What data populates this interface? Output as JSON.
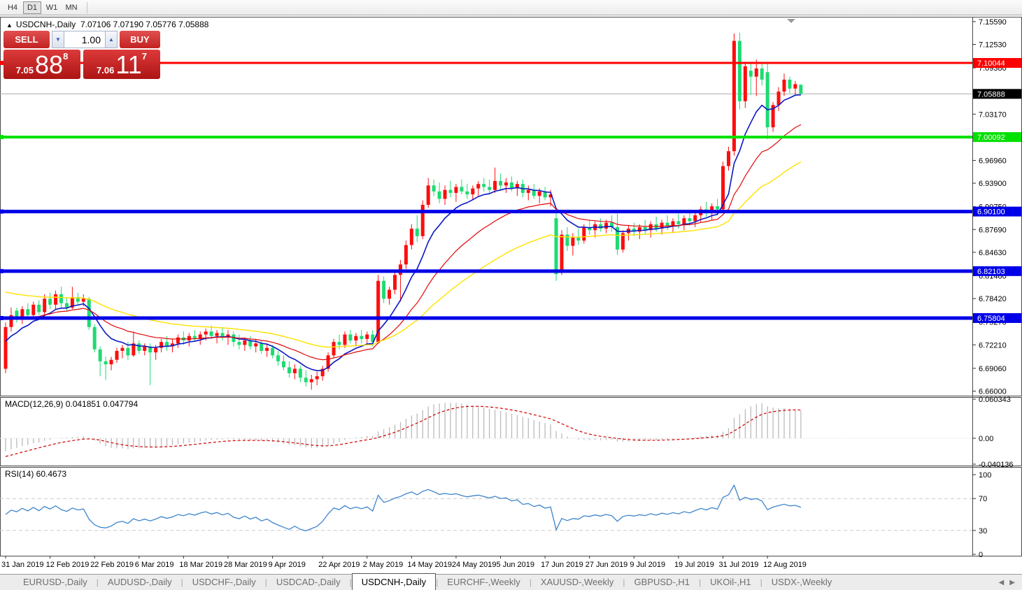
{
  "toolbar": {
    "timeframes": [
      "H4",
      "D1",
      "W1",
      "MN"
    ],
    "active": "D1"
  },
  "header": {
    "collapse_icon": "▲",
    "symbol": "USDCNH-,Daily",
    "ohlc_text": "7.07106 7.07190 7.05776 7.05888"
  },
  "trade_panel": {
    "sell_label": "SELL",
    "buy_label": "BUY",
    "volume": "1.00",
    "spin_down_icon": "▼",
    "spin_up_icon": "▲",
    "sell_price_prefix": "7.05",
    "sell_price_big": "88",
    "sell_price_sup": "8",
    "buy_price_prefix": "7.06",
    "buy_price_big": "11",
    "buy_price_sup": "7"
  },
  "price_axis": {
    "ticks": [
      7.1559,
      7.1253,
      7.0938,
      7.0622,
      7.0317,
      6.9696,
      6.939,
      6.9075,
      6.8769,
      6.8463,
      6.8148,
      6.7842,
      6.7527,
      6.7221,
      6.6906,
      6.66
    ]
  },
  "chart_data": {
    "type": "candlestick",
    "symbol": "USDCNH",
    "timeframe": "Daily",
    "up_color": "#fe0d0d",
    "down_color": "#1edb72",
    "price_range": [
      6.66,
      7.1559
    ],
    "bid": {
      "price": 7.05888,
      "label": "7.05888",
      "line_color": "#ababab",
      "label_bg": "#000000"
    },
    "hlines": [
      {
        "price": 7.10044,
        "label": "7.10044",
        "color": "#fe0000",
        "width": 3
      },
      {
        "price": 7.00092,
        "label": "7.00092",
        "color": "#00e100",
        "width": 4
      },
      {
        "price": 6.901,
        "label": "6.90100",
        "color": "#0000e8",
        "width": 5
      },
      {
        "price": 6.82103,
        "label": "6.82103",
        "color": "#0000e8",
        "width": 5
      },
      {
        "price": 6.75804,
        "label": "6.75804",
        "color": "#0000e8",
        "width": 5
      }
    ],
    "candles": [
      [
        6.69,
        6.752,
        6.684,
        6.746
      ],
      [
        6.746,
        6.772,
        6.74,
        6.762
      ],
      [
        6.768,
        6.772,
        6.752,
        6.757
      ],
      [
        6.757,
        6.774,
        6.75,
        6.77
      ],
      [
        6.77,
        6.778,
        6.758,
        6.762
      ],
      [
        6.762,
        6.78,
        6.757,
        6.776
      ],
      [
        6.776,
        6.782,
        6.762,
        6.766
      ],
      [
        6.766,
        6.79,
        6.76,
        6.784
      ],
      [
        6.784,
        6.792,
        6.77,
        6.776
      ],
      [
        6.776,
        6.795,
        6.77,
        6.79
      ],
      [
        6.79,
        6.8,
        6.772,
        6.778
      ],
      [
        6.778,
        6.786,
        6.768,
        6.772
      ],
      [
        6.772,
        6.8,
        6.77,
        6.786
      ],
      [
        6.786,
        6.792,
        6.776,
        6.78
      ],
      [
        6.78,
        6.79,
        6.774,
        6.784
      ],
      [
        6.784,
        6.786,
        6.742,
        6.746
      ],
      [
        6.746,
        6.75,
        6.712,
        6.716
      ],
      [
        6.716,
        6.72,
        6.68,
        6.7
      ],
      [
        6.7,
        6.706,
        6.675,
        6.696
      ],
      [
        6.696,
        6.706,
        6.688,
        6.702
      ],
      [
        6.702,
        6.718,
        6.698,
        6.714
      ],
      [
        6.714,
        6.722,
        6.704,
        6.718
      ],
      [
        6.718,
        6.726,
        6.702,
        6.708
      ],
      [
        6.708,
        6.74,
        6.706,
        6.724
      ],
      [
        6.724,
        6.728,
        6.71,
        6.714
      ],
      [
        6.714,
        6.724,
        6.708,
        6.72
      ],
      [
        6.72,
        6.724,
        6.668,
        6.712
      ],
      [
        6.712,
        6.722,
        6.702,
        6.718
      ],
      [
        6.718,
        6.73,
        6.712,
        6.726
      ],
      [
        6.726,
        6.734,
        6.714,
        6.72
      ],
      [
        6.72,
        6.73,
        6.712,
        6.724
      ],
      [
        6.724,
        6.736,
        6.718,
        6.732
      ],
      [
        6.732,
        6.74,
        6.722,
        6.728
      ],
      [
        6.728,
        6.738,
        6.72,
        6.734
      ],
      [
        6.734,
        6.742,
        6.726,
        6.73
      ],
      [
        6.73,
        6.74,
        6.722,
        6.736
      ],
      [
        6.736,
        6.744,
        6.728,
        6.74
      ],
      [
        6.74,
        6.748,
        6.73,
        6.734
      ],
      [
        6.734,
        6.742,
        6.724,
        6.738
      ],
      [
        6.738,
        6.746,
        6.728,
        6.732
      ],
      [
        6.732,
        6.742,
        6.722,
        6.736
      ],
      [
        6.736,
        6.74,
        6.72,
        6.726
      ],
      [
        6.726,
        6.736,
        6.716,
        6.722
      ],
      [
        6.722,
        6.732,
        6.714,
        6.728
      ],
      [
        6.728,
        6.734,
        6.716,
        6.72
      ],
      [
        6.72,
        6.73,
        6.712,
        6.724
      ],
      [
        6.724,
        6.728,
        6.71,
        6.714
      ],
      [
        6.714,
        6.724,
        6.706,
        6.718
      ],
      [
        6.718,
        6.722,
        6.704,
        6.708
      ],
      [
        6.708,
        6.714,
        6.694,
        6.7
      ],
      [
        6.7,
        6.708,
        6.688,
        6.692
      ],
      [
        6.692,
        6.7,
        6.678,
        6.684
      ],
      [
        6.684,
        6.696,
        6.676,
        6.69
      ],
      [
        6.69,
        6.694,
        6.672,
        6.678
      ],
      [
        6.678,
        6.688,
        6.666,
        6.672
      ],
      [
        6.672,
        6.682,
        6.662,
        6.676
      ],
      [
        6.676,
        6.686,
        6.668,
        6.68
      ],
      [
        6.68,
        6.694,
        6.674,
        6.69
      ],
      [
        6.69,
        6.712,
        6.686,
        6.708
      ],
      [
        6.708,
        6.73,
        6.704,
        6.726
      ],
      [
        6.726,
        6.736,
        6.716,
        6.722
      ],
      [
        6.722,
        6.74,
        6.718,
        6.736
      ],
      [
        6.736,
        6.742,
        6.724,
        6.728
      ],
      [
        6.728,
        6.738,
        6.72,
        6.734
      ],
      [
        6.734,
        6.742,
        6.724,
        6.73
      ],
      [
        6.73,
        6.74,
        6.722,
        6.736
      ],
      [
        6.736,
        6.742,
        6.72,
        6.726
      ],
      [
        6.726,
        6.816,
        6.724,
        6.808
      ],
      [
        6.808,
        6.814,
        6.778,
        6.784
      ],
      [
        6.784,
        6.8,
        6.776,
        6.796
      ],
      [
        6.796,
        6.822,
        6.79,
        6.816
      ],
      [
        6.816,
        6.836,
        6.78,
        6.83
      ],
      [
        6.83,
        6.862,
        6.824,
        6.856
      ],
      [
        6.856,
        6.884,
        6.85,
        6.878
      ],
      [
        6.878,
        6.896,
        6.86,
        6.868
      ],
      [
        6.868,
        6.916,
        6.864,
        6.91
      ],
      [
        6.91,
        6.946,
        6.906,
        6.936
      ],
      [
        6.936,
        6.944,
        6.922,
        6.928
      ],
      [
        6.928,
        6.94,
        6.912,
        6.918
      ],
      [
        6.918,
        6.936,
        6.91,
        6.93
      ],
      [
        6.93,
        6.942,
        6.92,
        6.926
      ],
      [
        6.926,
        6.938,
        6.914,
        6.934
      ],
      [
        6.934,
        6.944,
        6.924,
        6.928
      ],
      [
        6.928,
        6.938,
        6.918,
        6.924
      ],
      [
        6.924,
        6.936,
        6.916,
        6.932
      ],
      [
        6.932,
        6.942,
        6.922,
        6.938
      ],
      [
        6.938,
        6.946,
        6.928,
        6.934
      ],
      [
        6.934,
        6.944,
        6.924,
        6.93
      ],
      [
        6.93,
        6.96,
        6.926,
        6.942
      ],
      [
        6.942,
        6.952,
        6.93,
        6.936
      ],
      [
        6.936,
        6.946,
        6.926,
        6.94
      ],
      [
        6.94,
        6.948,
        6.928,
        6.932
      ],
      [
        6.932,
        6.942,
        6.922,
        6.938
      ],
      [
        6.938,
        6.944,
        6.92,
        6.926
      ],
      [
        6.926,
        6.936,
        6.916,
        6.93
      ],
      [
        6.93,
        6.938,
        6.918,
        6.922
      ],
      [
        6.922,
        6.932,
        6.912,
        6.928
      ],
      [
        6.928,
        6.934,
        6.916,
        6.92
      ],
      [
        6.92,
        6.93,
        6.908,
        6.924
      ],
      [
        6.892,
        6.9,
        6.808,
        6.817
      ],
      [
        6.82,
        6.876,
        6.816,
        6.87
      ],
      [
        6.87,
        6.88,
        6.848,
        6.855
      ],
      [
        6.855,
        6.872,
        6.842,
        6.866
      ],
      [
        6.866,
        6.878,
        6.856,
        6.862
      ],
      [
        6.862,
        6.884,
        6.858,
        6.88
      ],
      [
        6.88,
        6.89,
        6.87,
        6.876
      ],
      [
        6.876,
        6.888,
        6.866,
        6.884
      ],
      [
        6.884,
        6.892,
        6.874,
        6.878
      ],
      [
        6.878,
        6.89,
        6.872,
        6.886
      ],
      [
        6.886,
        6.896,
        6.874,
        6.88
      ],
      [
        6.88,
        6.898,
        6.843,
        6.85
      ],
      [
        6.85,
        6.876,
        6.846,
        6.872
      ],
      [
        6.872,
        6.882,
        6.862,
        6.878
      ],
      [
        6.878,
        6.886,
        6.868,
        6.874
      ],
      [
        6.874,
        6.884,
        6.864,
        6.88
      ],
      [
        6.88,
        6.89,
        6.87,
        6.876
      ],
      [
        6.876,
        6.888,
        6.866,
        6.884
      ],
      [
        6.884,
        6.894,
        6.874,
        6.878
      ],
      [
        6.878,
        6.89,
        6.87,
        6.886
      ],
      [
        6.886,
        6.896,
        6.876,
        6.882
      ],
      [
        6.882,
        6.892,
        6.872,
        6.888
      ],
      [
        6.888,
        6.898,
        6.878,
        6.884
      ],
      [
        6.884,
        6.896,
        6.876,
        6.892
      ],
      [
        6.892,
        6.902,
        6.882,
        6.888
      ],
      [
        6.888,
        6.9,
        6.88,
        6.896
      ],
      [
        6.896,
        6.908,
        6.886,
        6.904
      ],
      [
        6.904,
        6.914,
        6.894,
        6.9
      ],
      [
        6.9,
        6.912,
        6.89,
        6.908
      ],
      [
        6.908,
        6.918,
        6.898,
        6.904
      ],
      [
        6.904,
        6.968,
        6.9,
        6.962
      ],
      [
        6.962,
        6.988,
        6.956,
        6.982
      ],
      [
        6.982,
        7.14,
        6.976,
        7.13
      ],
      [
        7.13,
        7.141,
        7.038,
        7.049
      ],
      [
        7.049,
        7.102,
        7.04,
        7.096
      ],
      [
        7.09,
        7.102,
        7.058,
        7.082
      ],
      [
        7.082,
        7.105,
        7.056,
        7.093
      ],
      [
        7.093,
        7.1,
        7.07,
        7.078
      ],
      [
        7.088,
        7.1,
        6.998,
        7.014
      ],
      [
        7.014,
        7.048,
        7.008,
        7.044
      ],
      [
        7.044,
        7.068,
        7.036,
        7.062
      ],
      [
        7.062,
        7.086,
        7.056,
        7.078
      ],
      [
        7.078,
        7.082,
        7.06,
        7.066
      ],
      [
        7.066,
        7.076,
        7.058,
        7.072
      ],
      [
        7.07106,
        7.0719,
        7.05776,
        7.05888
      ]
    ],
    "date_labels": [
      [
        0,
        "31 Jan 2019"
      ],
      [
        8,
        "12 Feb 2019"
      ],
      [
        16,
        "22 Feb 2019"
      ],
      [
        24,
        "6 Mar 2019"
      ],
      [
        32,
        "18 Mar 2019"
      ],
      [
        40,
        "28 Mar 2019"
      ],
      [
        48,
        "9 Apr 2019"
      ],
      [
        57,
        "22 Apr 2019"
      ],
      [
        65,
        "2 May 2019"
      ],
      [
        73,
        "14 May 2019"
      ],
      [
        81,
        "24 May 2019"
      ],
      [
        89,
        "5 Jun 2019"
      ],
      [
        97,
        "17 Jun 2019"
      ],
      [
        105,
        "27 Jun 2019"
      ],
      [
        113,
        "9 Jul 2019"
      ],
      [
        121,
        "19 Jul 2019"
      ],
      [
        129,
        "31 Jul 2019"
      ],
      [
        137,
        "12 Aug 2019"
      ]
    ],
    "moving_averages": [
      {
        "period": 9,
        "color": "#0a18c4",
        "width": 1.6,
        "seed": 6.722
      },
      {
        "period": 22,
        "color": "#e00808",
        "width": 1.2,
        "seed": 6.757
      },
      {
        "period": 45,
        "color": "#ffe100",
        "width": 1.4,
        "seed": 6.795
      }
    ],
    "macd": {
      "label": "MACD(12,26,9) 0.041851 0.047794",
      "fast": 12,
      "slow": 26,
      "signal_period": 9,
      "current_main": 0.041851,
      "current_signal": 0.047794,
      "axis": [
        0.060343,
        0.0,
        -0.040136
      ],
      "axis_labels": [
        "0.060343",
        "0.00",
        "-0.040136"
      ],
      "seed_fast_offset": -0.004,
      "seed_slow_offset": 0.018,
      "seed_signal": -0.03,
      "hist_color": "#bbbbbb",
      "signal_color": "#d00000"
    },
    "rsi": {
      "label": "RSI(14) 60.4673",
      "period": 14,
      "current": 60.4673,
      "axis_labels": [
        "100",
        "70",
        "30",
        "0"
      ],
      "axis_values": [
        100,
        70,
        30,
        0
      ],
      "levels": [
        70,
        30
      ],
      "color": "#3d85cc"
    },
    "last_bar_marker": "triangle-down"
  },
  "tabs": {
    "items": [
      "EURUSD-,Daily",
      "AUDUSD-,Daily",
      "USDCHF-,Daily",
      "USDCAD-,Daily",
      "USDCNH-,Daily",
      "EURCHF-,Weekly",
      "XAUUSD-,Weekly",
      "GBPUSD-,H1",
      "UKOil-,H1",
      "USDX-,Weekly"
    ],
    "active": "USDCNH-,Daily",
    "nav_left": "◀",
    "nav_right": "▶"
  }
}
